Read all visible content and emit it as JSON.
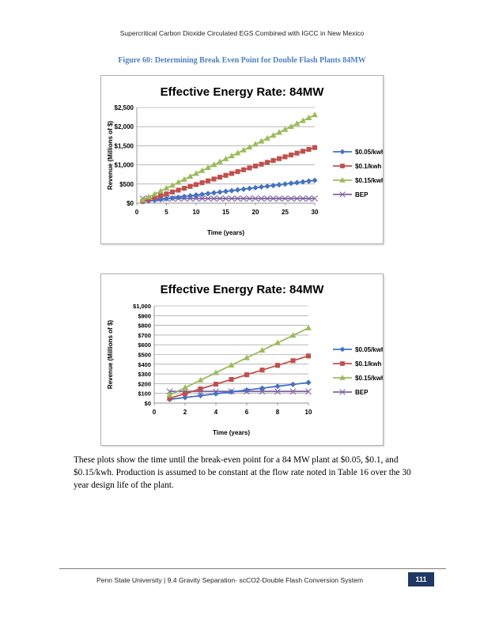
{
  "header": {
    "running_title": "Supercritical Carbon Dioxide Circulated EGS Combined with IGCC in New Mexico"
  },
  "figure": {
    "caption": "Figure 60:   Determining Break Even Point for Double Flash Plants 84MW"
  },
  "chart_data": [
    {
      "type": "line",
      "title": "Effective Energy Rate:  84MW",
      "xlabel": "Time (years)",
      "ylabel": "Revenue (Millions of $)",
      "xlim": [
        0,
        30
      ],
      "ylim": [
        0,
        2500
      ],
      "xticks": [
        0,
        5,
        10,
        15,
        20,
        25,
        30
      ],
      "yticks": [
        0,
        500,
        1000,
        1500,
        2000,
        2500
      ],
      "ytick_labels": [
        "$0",
        "$500",
        "$1,000",
        "$1,500",
        "$2,000",
        "$2,500"
      ],
      "grid": "horizontal",
      "legend": "right",
      "x": [
        1,
        2,
        3,
        4,
        5,
        6,
        7,
        8,
        9,
        10,
        11,
        12,
        13,
        14,
        15,
        16,
        17,
        18,
        19,
        20,
        21,
        22,
        23,
        24,
        25,
        26,
        27,
        28,
        29,
        30
      ],
      "series": [
        {
          "name": "$0.05/kwh",
          "color": "#4472c4",
          "marker": "diamond",
          "values": [
            38.4,
            57.6,
            76.8,
            96,
            115.2,
            134.4,
            153.6,
            172.8,
            192,
            211.2,
            230.4,
            249.6,
            268.8,
            288,
            307.2,
            326.4,
            345.6,
            364.8,
            384,
            403.2,
            422.4,
            441.6,
            460.8,
            480,
            499.2,
            518.4,
            537.6,
            556.8,
            576,
            595.2
          ]
        },
        {
          "name": "$0.1/kwh",
          "color": "#c0504d",
          "marker": "square",
          "values": [
            49.5,
            97.9,
            146.3,
            194.7,
            243.1,
            291.5,
            339.9,
            388.3,
            436.7,
            485.1,
            533.5,
            581.9,
            630.3,
            678.7,
            727.1,
            775.5,
            823.9,
            872.3,
            920.7,
            969.1,
            1017.5,
            1065.9,
            1114.3,
            1162.7,
            1211.1,
            1259.5,
            1307.9,
            1356.3,
            1404.7,
            1453.1
          ]
        },
        {
          "name": "$0.15/kwh",
          "color": "#9bbb59",
          "marker": "triangle",
          "values": [
            82.4,
            159.1,
            235.8,
            312.5,
            389.2,
            465.9,
            542.6,
            619.3,
            696,
            772.7,
            849.4,
            926.1,
            1002.8,
            1079.5,
            1156.2,
            1232.9,
            1309.6,
            1386.3,
            1463,
            1539.7,
            1616.4,
            1693.1,
            1769.8,
            1846.5,
            1923.2,
            1999.9,
            2076.6,
            2153.3,
            2230,
            2306.7
          ]
        },
        {
          "name": "BEP",
          "color": "#8064a2",
          "marker": "x",
          "values": [
            120,
            120,
            120,
            120,
            120,
            120,
            120,
            120,
            120,
            120,
            120,
            120,
            120,
            120,
            120,
            120,
            120,
            120,
            120,
            120,
            120,
            120,
            120,
            120,
            120,
            120,
            120,
            120,
            120,
            120
          ]
        }
      ]
    },
    {
      "type": "line",
      "title": "Effective Energy Rate:  84MW",
      "xlabel": "Time (years)",
      "ylabel": "Revenue (Millions of $)",
      "xlim": [
        0,
        10
      ],
      "ylim": [
        0,
        1000
      ],
      "xticks": [
        0,
        2,
        4,
        6,
        8,
        10
      ],
      "yticks": [
        0,
        100,
        200,
        300,
        400,
        500,
        600,
        700,
        800,
        900,
        1000
      ],
      "ytick_labels": [
        "$0",
        "$100",
        "$200",
        "$300",
        "$400",
        "$500",
        "$600",
        "$700",
        "$800",
        "$900",
        "$1,000"
      ],
      "grid": "horizontal",
      "legend": "right",
      "x": [
        1,
        2,
        3,
        4,
        5,
        6,
        7,
        8,
        9,
        10
      ],
      "series": [
        {
          "name": "$0.05/kwh",
          "color": "#4472c4",
          "marker": "diamond",
          "values": [
            38.4,
            57.6,
            76.8,
            96,
            115.2,
            134.4,
            153.6,
            172.8,
            192,
            211.2
          ]
        },
        {
          "name": "$0.1/kwh",
          "color": "#c0504d",
          "marker": "square",
          "values": [
            49.5,
            97.9,
            146.3,
            194.7,
            243.1,
            291.5,
            339.9,
            388.3,
            436.7,
            485.1
          ]
        },
        {
          "name": "$0.15/kwh",
          "color": "#9bbb59",
          "marker": "triangle",
          "values": [
            82.4,
            159.1,
            235.8,
            312.5,
            389.2,
            465.9,
            542.6,
            619.3,
            696,
            772.7
          ]
        },
        {
          "name": "BEP",
          "color": "#8064a2",
          "marker": "x",
          "values": [
            120,
            120,
            120,
            120,
            120,
            120,
            120,
            120,
            120,
            120
          ]
        }
      ]
    }
  ],
  "body": {
    "paragraph": "These plots show the time until the break-even point for a 84 MW plant at $0.05, $0.1, and $0.15/kwh.  Production is assumed to be constant at the flow rate noted in Table 16 over the 30 year design life of the plant."
  },
  "footer": {
    "text": "Penn State University | 9.4 Gravity Separation- scCO2-Double Flash Conversion System",
    "page_number": "111"
  }
}
